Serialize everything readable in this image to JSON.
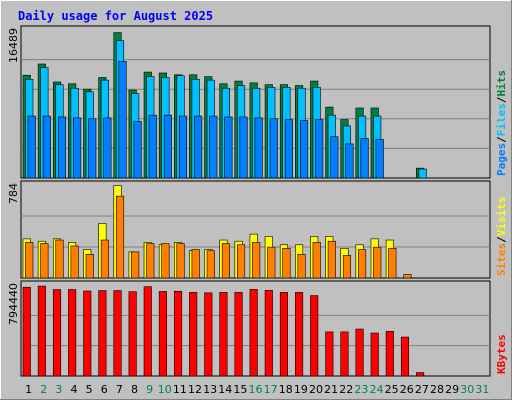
{
  "chart_data": {
    "type": "bar",
    "title": "Daily usage for August 2025",
    "days": [
      "1",
      "2",
      "3",
      "4",
      "5",
      "6",
      "7",
      "8",
      "9",
      "10",
      "11",
      "12",
      "13",
      "14",
      "15",
      "16",
      "17",
      "18",
      "19",
      "20",
      "21",
      "22",
      "23",
      "24",
      "25",
      "26",
      "27",
      "28",
      "29",
      "30",
      "31"
    ],
    "weekend_days": [
      2,
      3,
      9,
      10,
      16,
      17,
      23,
      24,
      30,
      31
    ],
    "panels": [
      {
        "name": "requests",
        "max_label": "16489",
        "ymax": 16489,
        "legend": [
          {
            "label": "Pages",
            "color": "#0080ff"
          },
          {
            "label": "Files",
            "color": "#00c0ff"
          },
          {
            "label": "Hits",
            "color": "#008040"
          }
        ],
        "series": [
          {
            "name": "Hits",
            "color": "#008040",
            "values": [
              11450,
              12700,
              10700,
              10500,
              9900,
              11200,
              16200,
              9800,
              11800,
              11700,
              11500,
              11500,
              11300,
              10500,
              10800,
              10600,
              10400,
              10400,
              10300,
              10800,
              7900,
              6500,
              7800,
              7800,
              0,
              0,
              1100,
              0,
              0,
              0,
              0
            ]
          },
          {
            "name": "Files",
            "color": "#00c0ff",
            "values": [
              11000,
              12300,
              10400,
              10000,
              9600,
              10900,
              15300,
              9400,
              11300,
              11200,
              11400,
              11000,
              10900,
              10000,
              10300,
              10000,
              10100,
              10100,
              10000,
              10100,
              7000,
              5800,
              6900,
              6900,
              0,
              0,
              1000,
              0,
              0,
              0,
              0
            ]
          },
          {
            "name": "Pages",
            "color": "#0080ff",
            "values": [
              6900,
              6900,
              6800,
              6700,
              6600,
              6700,
              13000,
              6300,
              7000,
              7000,
              6900,
              6900,
              6900,
              6800,
              6800,
              6700,
              6600,
              6500,
              6400,
              6500,
              4600,
              3800,
              4400,
              4300,
              0,
              0,
              0,
              0,
              0,
              0,
              0
            ]
          }
        ]
      },
      {
        "name": "visits",
        "max_label": "784",
        "ymax": 784,
        "legend": [
          {
            "label": "Sites",
            "color": "#ff8000"
          },
          {
            "label": "Visits",
            "color": "#ffff00"
          }
        ],
        "series": [
          {
            "name": "Visits",
            "color": "#ffff00",
            "values": [
              330,
              310,
              330,
              300,
              240,
              460,
              780,
              220,
              300,
              280,
              300,
              230,
              240,
              320,
              310,
              370,
              350,
              280,
              280,
              350,
              350,
              250,
              280,
              330,
              320,
              0,
              0,
              0,
              0,
              0,
              0
            ]
          },
          {
            "name": "Sites",
            "color": "#ff8000",
            "values": [
              300,
              290,
              320,
              270,
              200,
              320,
              690,
              220,
              290,
              290,
              290,
              240,
              230,
              290,
              280,
              300,
              260,
              250,
              200,
              300,
              310,
              190,
              240,
              260,
              250,
              30,
              0,
              0,
              0,
              0,
              0
            ]
          }
        ]
      },
      {
        "name": "kbytes",
        "max_label": "794440",
        "ymax": 794440,
        "legend": [
          {
            "label": "KBytes",
            "color": "#ff0000"
          }
        ],
        "series": [
          {
            "name": "KBytes",
            "color": "#ff0000",
            "values": [
              775000,
              785000,
              755000,
              755000,
              742000,
              746000,
              746000,
              736000,
              780000,
              738000,
              740000,
              730000,
              726000,
              730000,
              730000,
              756000,
              748000,
              730000,
              730000,
              702000,
              385000,
              385000,
              410000,
              375000,
              390000,
              340000,
              30000,
              0,
              0,
              0,
              0
            ]
          }
        ]
      }
    ]
  }
}
